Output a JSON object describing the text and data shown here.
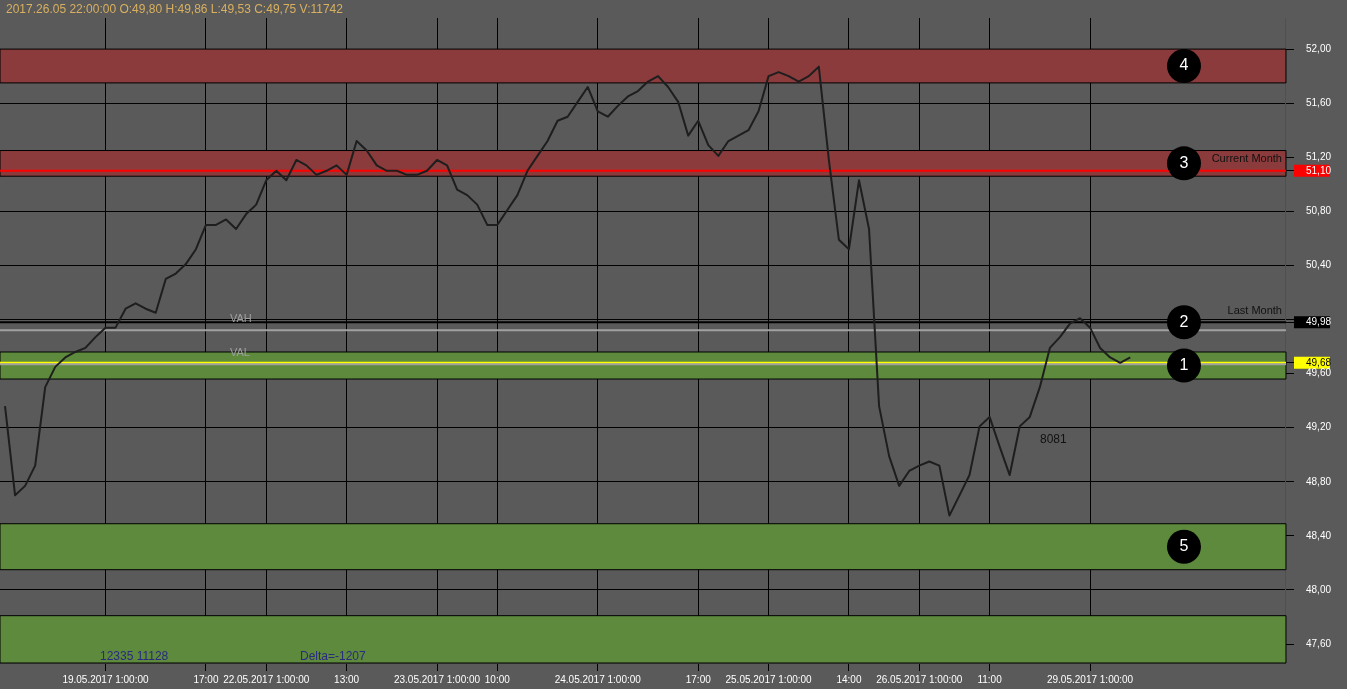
{
  "chart_data": {
    "type": "line",
    "title": "2017.26.05 22:00:00 O:49,80 H:49,86 L:49,53 C:49,75 V:11742",
    "categories": [
      null,
      null,
      null,
      null,
      null,
      null,
      null,
      null,
      null,
      null,
      "19.05.2017 1:00:00",
      null,
      null,
      null,
      null,
      null,
      null,
      null,
      null,
      null,
      "17:00",
      null,
      null,
      null,
      null,
      null,
      "22.05.2017 1:00:00",
      null,
      null,
      null,
      null,
      null,
      null,
      null,
      "13:00",
      null,
      null,
      null,
      null,
      null,
      null,
      null,
      null,
      "23.05.2017 1:00:00",
      null,
      null,
      null,
      null,
      null,
      "10:00",
      null,
      null,
      null,
      null,
      null,
      null,
      null,
      null,
      null,
      "24.05.2017 1:00:00",
      null,
      null,
      null,
      null,
      null,
      null,
      null,
      null,
      null,
      "17:00",
      null,
      null,
      null,
      null,
      null,
      null,
      "25.05.2017 1:00:00",
      null,
      null,
      null,
      null,
      null,
      null,
      null,
      "14:00",
      null,
      null,
      null,
      null,
      null,
      null,
      "26.05.2017 1:00:00",
      null,
      null,
      null,
      null,
      null,
      null,
      "11:00",
      null,
      null,
      null,
      null,
      null,
      null,
      null,
      null,
      null,
      "29.05.2017 1:00:00",
      null,
      null,
      null,
      null,
      null,
      null,
      null,
      null,
      null,
      null,
      null,
      null,
      null,
      null,
      null,
      null,
      null,
      null,
      null
    ],
    "series": [
      {
        "color": "#1e1e1e",
        "values": [
          49.36,
          48.7,
          48.77,
          48.92,
          49.5,
          49.65,
          49.72,
          49.76,
          49.79,
          49.87,
          49.94,
          49.94,
          50.08,
          50.12,
          50.08,
          50.05,
          50.3,
          50.34,
          50.41,
          50.52,
          50.7,
          50.7,
          50.74,
          50.67,
          50.78,
          50.85,
          51.03,
          51.1,
          51.03,
          51.18,
          51.14,
          51.07,
          51.1,
          51.14,
          51.07,
          51.32,
          51.25,
          51.14,
          51.1,
          51.1,
          51.07,
          51.07,
          51.1,
          51.18,
          51.14,
          50.96,
          50.92,
          50.85,
          50.7,
          50.7,
          50.81,
          50.92,
          51.1,
          51.21,
          51.32,
          51.47,
          51.5,
          51.61,
          51.72,
          51.54,
          51.5,
          51.58,
          51.65,
          51.69,
          51.76,
          51.8,
          51.72,
          51.61,
          51.36,
          51.47,
          51.29,
          51.21,
          51.32,
          51.36,
          51.4,
          51.54,
          51.8,
          51.83,
          51.8,
          51.76,
          51.8,
          51.87,
          51.18,
          50.59,
          50.52,
          51.03,
          50.67,
          49.36,
          48.99,
          48.77,
          48.88,
          48.92,
          48.95,
          48.92,
          48.55,
          48.7,
          48.85,
          49.21,
          49.28,
          49.06,
          48.85,
          49.21,
          49.28,
          49.5,
          49.79,
          49.87,
          49.97,
          50.01,
          49.94,
          49.79,
          49.72,
          49.68,
          49.72,
          null,
          null,
          null,
          null,
          null,
          null,
          null,
          null,
          null,
          null,
          null,
          null,
          null,
          null,
          null
        ]
      }
    ],
    "ylim": [
      47.46,
      52.23
    ],
    "yticks": [
      {
        "value": 47.6,
        "label": "47,60"
      },
      {
        "value": 48.0,
        "label": "48,00"
      },
      {
        "value": 48.4,
        "label": "48,40"
      },
      {
        "value": 48.8,
        "label": "48,80"
      },
      {
        "value": 49.2,
        "label": "49,20"
      },
      {
        "value": 49.6,
        "label": "49,60"
      },
      {
        "value": 49.68,
        "label": "49,68"
      },
      {
        "value": 49.98,
        "label": "49,98"
      },
      {
        "value": 51.1,
        "label": "51,10"
      },
      {
        "value": 50.0,
        "label": null
      },
      {
        "value": 50.4,
        "label": "50,40"
      },
      {
        "value": 50.8,
        "label": "50,80"
      },
      {
        "value": 51.2,
        "label": "51,20"
      },
      {
        "value": 51.6,
        "label": "51,60"
      },
      {
        "value": 52.0,
        "label": "52,00"
      }
    ],
    "grid": true,
    "legend": false,
    "marker": "none",
    "bands": [
      {
        "axis": "y",
        "from": 51.75,
        "to": 52.0,
        "label": "4",
        "color": "#8b3b3b"
      },
      {
        "axis": "y",
        "from": 51.06,
        "to": 51.25,
        "label": "3",
        "color": "#8b3b3b"
      },
      {
        "axis": "y",
        "from": 49.56,
        "to": 49.76,
        "label": "1",
        "color": "#5d8a3c"
      },
      {
        "axis": "y",
        "from": 48.15,
        "to": 48.49,
        "label": "5",
        "color": "#5d8a3c"
      },
      {
        "axis": "y",
        "from": 47.46,
        "to": 47.81,
        "label": null,
        "color": "#5d8a3c"
      }
    ],
    "ref_lines": [
      {
        "axis": "y",
        "value": 51.1,
        "label": "Current Month",
        "color": "#ff0000"
      },
      {
        "axis": "y",
        "value": 49.98,
        "label": "Last Month",
        "color": "#000000"
      },
      {
        "axis": "y",
        "value": 49.68,
        "label": null,
        "color": "#ffff00"
      },
      {
        "axis": "y",
        "value": 49.92,
        "label": "VAH",
        "color": "#a0a0a0"
      },
      {
        "axis": "y",
        "value": 49.67,
        "label": "VAL",
        "color": "#a0a0a0"
      }
    ],
    "annotations": [
      {
        "text": "2",
        "y": 49.98
      },
      "8081",
      "12335 11128",
      "Delta=-1207"
    ]
  }
}
